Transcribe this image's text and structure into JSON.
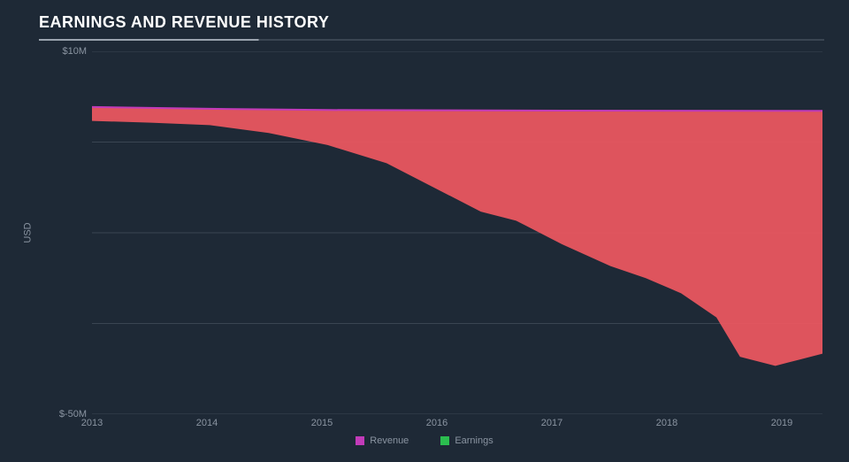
{
  "chart": {
    "type": "area",
    "title": "EARNINGS AND REVENUE HISTORY",
    "background_color": "#1e2936",
    "title_color": "#ffffff",
    "title_fontsize": 18,
    "axis_text_color": "#8a94a1",
    "grid_color": "#3a4552",
    "rule_color_strong": "#9aa3ae",
    "rule_color_weak": "#3a4552",
    "y_axis_label": "USD",
    "y_range": [
      -50,
      10
    ],
    "y_ticks": [
      {
        "value": 10,
        "label": "$10M"
      },
      {
        "value": -50,
        "label": "$-50M"
      }
    ],
    "x_ticks": [
      "2013",
      "2014",
      "2015",
      "2016",
      "2017",
      "2018",
      "2019"
    ],
    "x_range": [
      2013,
      2019.2
    ],
    "series": [
      {
        "name": "Revenue",
        "legend_label": "Revenue",
        "stroke_color": "#c23bb9",
        "fill_color": "#ef5861",
        "fill_opacity": 0.92,
        "stroke_width": 2,
        "data": [
          [
            2013,
            0.8
          ],
          [
            2014,
            0.5
          ],
          [
            2015,
            0.3
          ],
          [
            2016,
            0.25
          ],
          [
            2017,
            0.2
          ],
          [
            2018,
            0.18
          ],
          [
            2019,
            0.15
          ],
          [
            2019.2,
            0.15
          ]
        ]
      },
      {
        "name": "Earnings",
        "legend_label": "Earnings",
        "stroke_color": "#2bbd4f",
        "fill_color": "#1e2936",
        "fill_opacity": 1.0,
        "stroke_width": 2,
        "data": [
          [
            2013,
            -1.5
          ],
          [
            2013.5,
            -1.8
          ],
          [
            2014,
            -2.2
          ],
          [
            2014.5,
            -3.5
          ],
          [
            2015,
            -5.5
          ],
          [
            2015.5,
            -8.5
          ],
          [
            2016,
            -13.5
          ],
          [
            2016.3,
            -16.5
          ],
          [
            2016.6,
            -18.0
          ],
          [
            2017,
            -22.0
          ],
          [
            2017.4,
            -25.5
          ],
          [
            2017.7,
            -27.5
          ],
          [
            2018,
            -30.0
          ],
          [
            2018.3,
            -34.0
          ],
          [
            2018.5,
            -40.5
          ],
          [
            2018.8,
            -42.0
          ],
          [
            2019,
            -41.0
          ],
          [
            2019.2,
            -40.0
          ]
        ]
      }
    ],
    "legend": [
      {
        "label": "Revenue",
        "color": "#c23bb9"
      },
      {
        "label": "Earnings",
        "color": "#2bbd4f"
      }
    ]
  }
}
